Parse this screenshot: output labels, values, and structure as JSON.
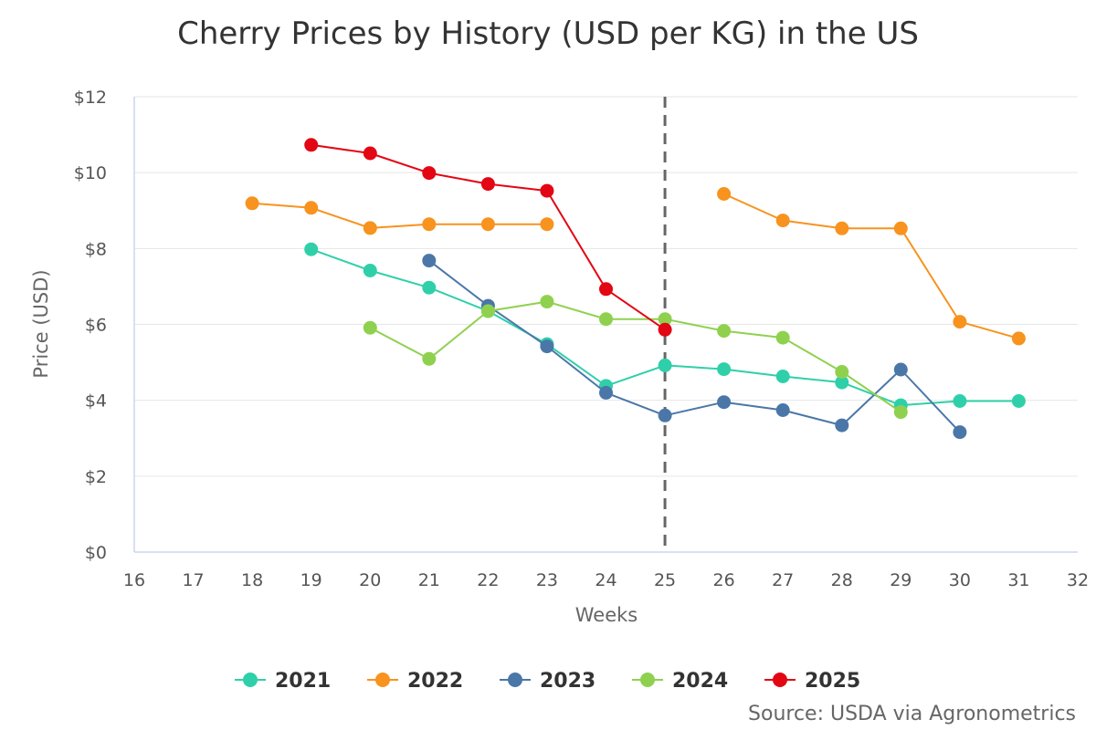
{
  "chart_data": {
    "type": "line",
    "title": "Cherry Prices by History (USD per KG) in the US",
    "xlabel": "Weeks",
    "ylabel": "Price (USD)",
    "xlim": [
      16,
      32
    ],
    "ylim": [
      0,
      12
    ],
    "x_ticks": [
      16,
      17,
      18,
      19,
      20,
      21,
      22,
      23,
      24,
      25,
      26,
      27,
      28,
      29,
      30,
      31,
      32
    ],
    "y_ticks": [
      0,
      2,
      4,
      6,
      8,
      10,
      12
    ],
    "y_tick_labels": [
      "$0",
      "$2",
      "$4",
      "$6",
      "$8",
      "$10",
      "$12"
    ],
    "grid": true,
    "current_week_marker": 25,
    "legend_position": "bottom",
    "series": [
      {
        "name": "2021",
        "color": "#2fd0a9",
        "points": [
          [
            19,
            7.98
          ],
          [
            20,
            7.42
          ],
          [
            21,
            6.97
          ],
          [
            22,
            6.35
          ],
          [
            23,
            5.48
          ],
          [
            24,
            4.38
          ],
          [
            25,
            4.92
          ],
          [
            26,
            4.82
          ],
          [
            27,
            4.63
          ],
          [
            28,
            4.47
          ],
          [
            29,
            3.87
          ],
          [
            30,
            3.98
          ],
          [
            31,
            3.98
          ]
        ]
      },
      {
        "name": "2022",
        "color": "#f7931e",
        "segments": [
          [
            [
              18,
              9.19
            ],
            [
              19,
              9.07
            ],
            [
              20,
              8.54
            ],
            [
              21,
              8.64
            ],
            [
              22,
              8.64
            ],
            [
              23,
              8.64
            ]
          ],
          [
            [
              26,
              9.44
            ],
            [
              27,
              8.74
            ],
            [
              28,
              8.53
            ],
            [
              29,
              8.53
            ],
            [
              30,
              6.07
            ],
            [
              31,
              5.63
            ]
          ]
        ]
      },
      {
        "name": "2023",
        "color": "#4a77a8",
        "segments": [
          [
            [
              21,
              7.68
            ],
            [
              22,
              6.49
            ],
            [
              23,
              5.42
            ],
            [
              24,
              4.2
            ],
            [
              25,
              3.6
            ],
            [
              26,
              3.95
            ],
            [
              27,
              3.74
            ],
            [
              28,
              3.34
            ],
            [
              29,
              4.81
            ],
            [
              30,
              3.16
            ]
          ]
        ]
      },
      {
        "name": "2024",
        "color": "#8fd14f",
        "segments": [
          [
            [
              20,
              5.91
            ],
            [
              21,
              5.09
            ],
            [
              22,
              6.35
            ],
            [
              23,
              6.6
            ],
            [
              24,
              6.14
            ],
            [
              25,
              6.14
            ],
            [
              26,
              5.83
            ],
            [
              27,
              5.65
            ],
            [
              28,
              4.75
            ],
            [
              29,
              3.69
            ]
          ]
        ]
      },
      {
        "name": "2025",
        "color": "#e30613",
        "segments": [
          [
            [
              19,
              10.73
            ],
            [
              20,
              10.51
            ],
            [
              21,
              9.99
            ],
            [
              22,
              9.7
            ],
            [
              23,
              9.52
            ],
            [
              24,
              6.93
            ],
            [
              25,
              5.86
            ]
          ]
        ]
      }
    ]
  },
  "source_text": "Source: USDA via Agronometrics"
}
